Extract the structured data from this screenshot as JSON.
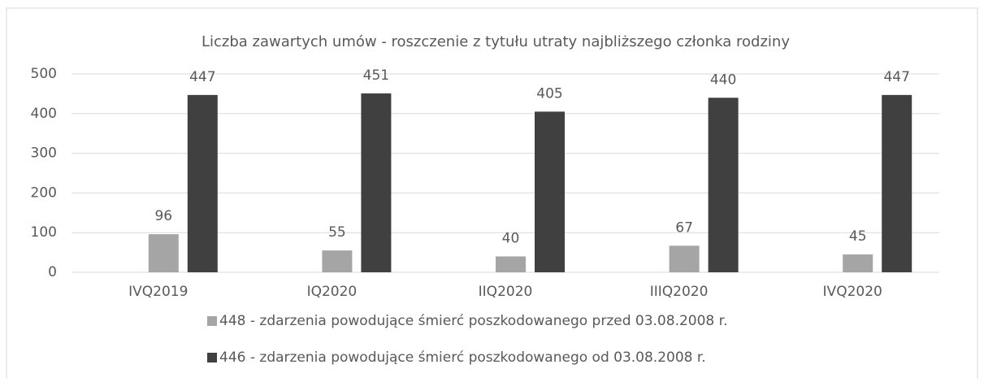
{
  "chart_data": {
    "type": "bar",
    "title": "Liczba zawartych umów - roszczenie z tytułu utraty najbliższego członka rodziny",
    "categories": [
      "IVQ2019",
      "IQ2020",
      "IIQ2020",
      "IIIQ2020",
      "IVQ2020"
    ],
    "series": [
      {
        "name": "448 - zdarzenia powodujące śmierć poszkodowanego przed 03.08.2008 r.",
        "color": "#a5a5a5",
        "values": [
          96,
          55,
          40,
          67,
          45
        ]
      },
      {
        "name": "446 - zdarzenia powodujące śmierć poszkodowanego od 03.08.2008 r.",
        "color": "#404040",
        "values": [
          447,
          451,
          405,
          440,
          447
        ]
      }
    ],
    "ylim": [
      0,
      500
    ],
    "yticks": [
      0,
      100,
      200,
      300,
      400,
      500
    ],
    "grid": true,
    "legend": "bottom"
  }
}
